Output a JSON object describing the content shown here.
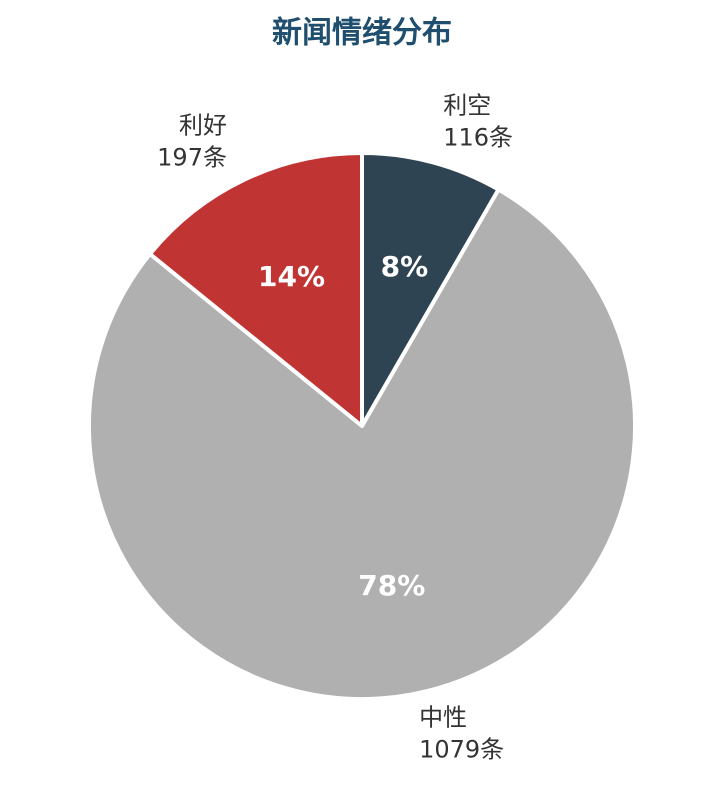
{
  "chart_data": {
    "type": "pie",
    "title": "新闻情绪分布",
    "categories": [
      "利空",
      "中性",
      "利好"
    ],
    "values": [
      116,
      1079,
      197
    ],
    "value_labels": [
      "116条",
      "1079条",
      "197条"
    ],
    "percentages": [
      8,
      78,
      14
    ],
    "percentage_labels": [
      "8%",
      "78%",
      "14%"
    ],
    "colors": [
      "#2e4453",
      "#b0b0b0",
      "#c03533"
    ]
  }
}
